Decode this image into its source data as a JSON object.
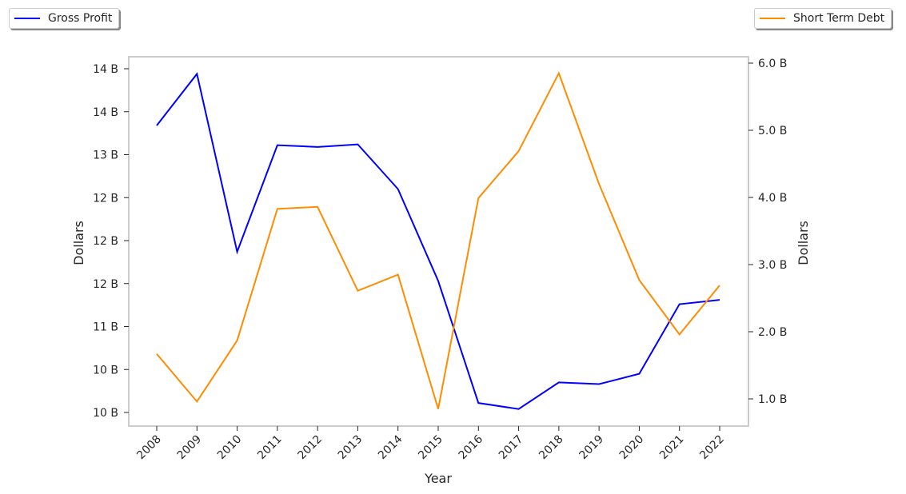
{
  "chart_data": {
    "type": "line",
    "xlabel": "Year",
    "ylabel_left": "Dollars",
    "ylabel_right": "Dollars",
    "categories": [
      "2008",
      "2009",
      "2010",
      "2011",
      "2012",
      "2013",
      "2014",
      "2015",
      "2016",
      "2017",
      "2018",
      "2019",
      "2020",
      "2021",
      "2022"
    ],
    "left_ticks": [
      {
        "v": 10.0,
        "label": "10 B"
      },
      {
        "v": 10.5,
        "label": "10 B"
      },
      {
        "v": 11.0,
        "label": "11 B"
      },
      {
        "v": 11.5,
        "label": "12 B"
      },
      {
        "v": 12.0,
        "label": "12 B"
      },
      {
        "v": 12.5,
        "label": "12 B"
      },
      {
        "v": 13.0,
        "label": "13 B"
      },
      {
        "v": 13.5,
        "label": "14 B"
      },
      {
        "v": 14.0,
        "label": "14 B"
      }
    ],
    "right_ticks": [
      {
        "v": 1.0,
        "label": "1.0 B"
      },
      {
        "v": 2.0,
        "label": "2.0 B"
      },
      {
        "v": 3.0,
        "label": "3.0 B"
      },
      {
        "v": 4.0,
        "label": "4.0 B"
      },
      {
        "v": 5.0,
        "label": "5.0 B"
      },
      {
        "v": 6.0,
        "label": "6.0 B"
      }
    ],
    "left_ylim": [
      9.84,
      14.14
    ],
    "right_ylim": [
      0.6,
      6.1
    ],
    "series": [
      {
        "name": "Gross Profit",
        "axis": "left",
        "color": "#0000ff",
        "values": [
          13.34,
          13.94,
          11.87,
          13.11,
          13.09,
          13.12,
          12.6,
          11.53,
          10.11,
          10.04,
          10.35,
          10.33,
          10.45,
          11.26,
          11.31
        ]
      },
      {
        "name": "Short Term Debt",
        "axis": "right",
        "color": "#ff8c00",
        "values": [
          1.67,
          0.96,
          1.87,
          3.83,
          3.86,
          2.61,
          2.85,
          0.85,
          3.99,
          4.69,
          5.85,
          4.2,
          2.77,
          1.96,
          2.69
        ]
      }
    ],
    "grid": false,
    "legend": [
      "top-left",
      "top-right"
    ]
  }
}
